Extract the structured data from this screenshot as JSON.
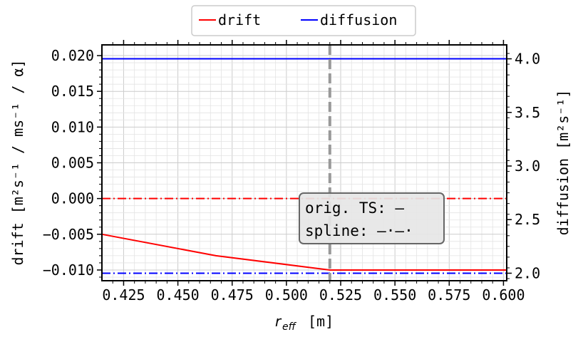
{
  "chart_data": {
    "type": "line",
    "legend": {
      "placement": "top-center-outside",
      "entries": [
        {
          "label": "drift",
          "color": "#ff0000"
        },
        {
          "label": "diffusion",
          "color": "#0000ff"
        }
      ]
    },
    "x_axis": {
      "label_main": "r",
      "label_sub": "eff",
      "label_unit": "[m]",
      "range": [
        0.415,
        0.6015
      ],
      "ticks": [
        0.425,
        0.45,
        0.475,
        0.5,
        0.525,
        0.55,
        0.575,
        0.6
      ],
      "tick_labels": [
        "0.425",
        "0.450",
        "0.475",
        "0.500",
        "0.525",
        "0.550",
        "0.575",
        "0.600"
      ]
    },
    "y_left": {
      "label": "drift [m²s⁻¹ / ms⁻¹ / α]",
      "range": [
        -0.0115,
        0.0215
      ],
      "ticks": [
        -0.01,
        -0.005,
        0.0,
        0.005,
        0.01,
        0.015,
        0.02
      ],
      "tick_labels": [
        "−0.010",
        "−0.005",
        "0.000",
        "0.005",
        "0.010",
        "0.015",
        "0.020"
      ]
    },
    "y_right": {
      "label": "diffusion [m²s⁻¹]",
      "range": [
        1.93,
        4.13
      ],
      "ticks": [
        2.0,
        2.5,
        3.0,
        3.5,
        4.0
      ],
      "tick_labels": [
        "2.0",
        "2.5",
        "3.0",
        "3.5",
        "4.0"
      ]
    },
    "grid": true,
    "vertical_marker": {
      "x": 0.52,
      "color": "#999999",
      "style": "dashed"
    },
    "series": [
      {
        "name": "drift",
        "axis": "left",
        "style": "solid",
        "color": "#ff0000",
        "x": [
          0.415,
          0.4675,
          0.52,
          0.6015
        ],
        "y": [
          -0.005,
          -0.008,
          -0.01,
          -0.01
        ]
      },
      {
        "name": "drift",
        "axis": "left",
        "style": "dashdot",
        "color": "#ff0000",
        "x": [
          0.415,
          0.6015
        ],
        "y": [
          0.0,
          0.0
        ]
      },
      {
        "name": "diffusion",
        "axis": "right",
        "style": "solid",
        "color": "#0000ff",
        "x": [
          0.415,
          0.6015
        ],
        "y": [
          4.0,
          4.0
        ]
      },
      {
        "name": "diffusion",
        "axis": "right",
        "style": "dashdot",
        "color": "#0000ff",
        "x": [
          0.415,
          0.6015
        ],
        "y": [
          2.0,
          2.0
        ]
      }
    ],
    "annotation": {
      "line1": "orig. TS: —",
      "line2": "spline: –·–·"
    }
  }
}
